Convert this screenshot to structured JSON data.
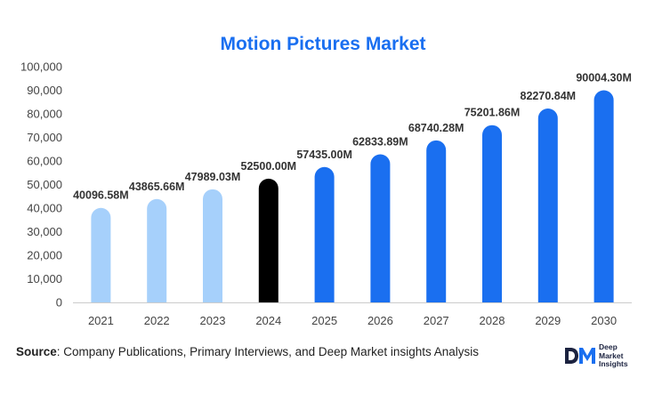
{
  "chart_data": {
    "type": "bar",
    "title": "Motion Pictures Market",
    "categories": [
      "2021",
      "2022",
      "2023",
      "2024",
      "2025",
      "2026",
      "2027",
      "2028",
      "2029",
      "2030"
    ],
    "values": [
      40096.58,
      43865.66,
      47989.03,
      52500.0,
      57435.0,
      62833.89,
      68740.28,
      75201.86,
      82270.84,
      90004.3
    ],
    "data_labels": [
      "40096.58M",
      "43865.66M",
      "47989.03M",
      "52500.00M",
      "57435.00M",
      "62833.89M",
      "68740.28M",
      "75201.86M",
      "82270.84M",
      "90004.30M"
    ],
    "bar_colors": [
      "#a6d0fb",
      "#a6d0fb",
      "#a6d0fb",
      "#000000",
      "#1a6ff0",
      "#1a6ff0",
      "#1a6ff0",
      "#1a6ff0",
      "#1a6ff0",
      "#1a6ff0"
    ],
    "yticks": [
      0,
      10000,
      20000,
      30000,
      40000,
      50000,
      60000,
      70000,
      80000,
      90000,
      100000
    ],
    "ytick_labels": [
      "0",
      "10,000",
      "20,000",
      "30,000",
      "40,000",
      "50,000",
      "60,000",
      "70,000",
      "80,000",
      "90,000",
      "100,000"
    ],
    "ylim": [
      0,
      100000
    ],
    "xlabel": "",
    "ylabel": "",
    "grid": false,
    "legend": "none"
  },
  "source": {
    "label": "Source",
    "text": ": Company Publications, Primary Interviews, and Deep Market insights Analysis"
  },
  "logo": {
    "mark_letters": "DM",
    "line1": "Deep",
    "line2": "Market",
    "line3": "Insights",
    "accent_color": "#1a6ff0",
    "dark_color": "#1c2340"
  }
}
